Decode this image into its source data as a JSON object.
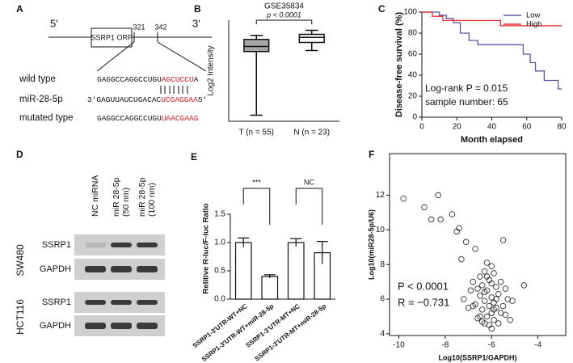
{
  "panel_labels": [
    "A",
    "B",
    "C",
    "D",
    "E",
    "F"
  ],
  "sequence_diagram": {
    "five_prime": "5′",
    "three_prime": "3′",
    "orf": "SSRP1 ORF",
    "positions": [
      "321",
      "342"
    ],
    "rows": [
      {
        "label": "wild type",
        "parts": [
          "GAGGCCAGGCCUGU",
          "AGCUCCU",
          "A"
        ]
      },
      {
        "label": "miR-28-5p",
        "parts": [
          "3′GAGUUAUCUGACAC",
          "UCGAGGAA",
          "5′"
        ]
      },
      {
        "label": "mutated type",
        "parts": [
          "GAGGCCAGGCCUGU",
          "UAACGAAG"
        ]
      }
    ]
  },
  "western_blot": {
    "lanes": [
      [
        "NC miRNA"
      ],
      [
        "miR 28-5p",
        "(50 nm)"
      ],
      [
        "miR 28-5p",
        "(100 nm)"
      ]
    ],
    "cell_lines": [
      {
        "name": "SW480",
        "proteins": [
          "SSRP1",
          "GAPDH"
        ]
      },
      {
        "name": "HCT116",
        "proteins": [
          "SSRP1",
          "GAPDH"
        ]
      }
    ]
  },
  "chart_data": [
    {
      "type": "box",
      "title": "GSE35834",
      "annotations": [
        "p < 0.0001"
      ],
      "ylabel": "Log2 Intensity",
      "categories": [
        "T (n = 55)",
        "N (n = 23)"
      ],
      "colors": [
        "#a6a6a6",
        "#ffffff"
      ],
      "min": [
        0.6,
        7.0
      ],
      "q1": [
        6.9,
        7.8
      ],
      "median": [
        7.4,
        8.3
      ],
      "q3": [
        8.1,
        8.6
      ],
      "max": [
        8.5,
        9.0
      ],
      "ylim": [
        0,
        10
      ]
    },
    {
      "type": "line",
      "ylabel": "Disease-free survival (%)",
      "xlabel": "Month elapsed",
      "xlim": [
        0,
        80
      ],
      "ylim": [
        0,
        100
      ],
      "xticks": [
        0,
        20,
        40,
        60,
        80
      ],
      "yticks": [
        0,
        20,
        40,
        60,
        80,
        100
      ],
      "legend": "upper right",
      "annotations": [
        "Log-rank P = 0.015",
        "sample number: 65"
      ],
      "series": [
        {
          "name": "Low",
          "color": "#5b55a0",
          "x": [
            0,
            10,
            10,
            14,
            14,
            18,
            18,
            22,
            22,
            27,
            27,
            32,
            32,
            58,
            58,
            62,
            62,
            65,
            65,
            70,
            70,
            78,
            78,
            80
          ],
          "values": [
            100,
            100,
            97,
            97,
            94,
            94,
            90,
            90,
            80,
            80,
            73,
            73,
            69,
            69,
            60,
            60,
            52,
            52,
            44,
            44,
            35,
            35,
            27,
            27
          ]
        },
        {
          "name": "High",
          "color": "#e8262b",
          "x": [
            0,
            6,
            6,
            12,
            12,
            45,
            45,
            80
          ],
          "values": [
            100,
            100,
            96,
            96,
            92,
            92,
            87,
            87
          ]
        }
      ]
    },
    {
      "type": "bar",
      "ylabel": "Relitive R-luc/F-luc Ratio",
      "categories": [
        "SSRP1-3′UTR-WT+NC",
        "SSRP1-3′UTR-WT+miR-28-5p",
        "SSRP1-3′UTR-MT+NC",
        "SSRP1-3′UTR-MT+miR-28-5p"
      ],
      "values": [
        1.0,
        0.4,
        1.0,
        0.82
      ],
      "errors": [
        0.08,
        0.03,
        0.07,
        0.2
      ],
      "color": "#ffffff",
      "ylim": [
        0,
        1.5
      ],
      "yticks": [
        {
          "value": 0,
          "label": "0.0"
        },
        {
          "value": 0.5,
          "label": "0.5"
        },
        {
          "value": 1,
          "label": "1.0"
        },
        {
          "value": 1.5,
          "label": "1.5"
        }
      ],
      "annotations": [
        "***",
        "NC"
      ]
    },
    {
      "type": "scatter",
      "xlabel": "Log10(SSRP1/GAPDH)",
      "ylabel": "Log10(miR28-5p/U6)",
      "xlim": [
        -10.4,
        -2.8
      ],
      "ylim": [
        3.9,
        14.4
      ],
      "xticks": [
        -10,
        -8,
        -6,
        -4
      ],
      "yticks": [
        4,
        6,
        8,
        10,
        12
      ],
      "annotations": [
        "P < 0.0001",
        "R = −0.731"
      ],
      "x": [
        -9.8,
        -8.3,
        -8.9,
        -7.7,
        -8.6,
        -8.2,
        -7.4,
        -7.1,
        -7.5,
        -6.7,
        -7.3,
        -5.5,
        -6.2,
        -6.0,
        -6.3,
        -5.9,
        -6.5,
        -6.1,
        -5.6,
        -6.4,
        -6.0,
        -5.8,
        -6.9,
        -6.2,
        -5.7,
        -5.3,
        -6.5,
        -6.0,
        -6.3,
        -5.9,
        -6.7,
        -6.1,
        -5.8,
        -6.4,
        -7.0,
        -5.6,
        -6.0,
        -6.2,
        -5.4,
        -6.5,
        -5.9,
        -6.3,
        -6.1,
        -5.7,
        -5.2,
        -6.8,
        -7.2,
        -6.6,
        -4.6,
        -5.1,
        -6.0,
        -6.4,
        -5.5,
        -6.8,
        -6.2,
        -5.8,
        -6.6,
        -5.9,
        -6.3,
        -5.4
      ],
      "values": [
        11.8,
        12.0,
        11.3,
        10.9,
        10.6,
        10.6,
        10.1,
        9.3,
        9.9,
        8.9,
        8.3,
        9.4,
        8.1,
        7.9,
        7.6,
        7.5,
        7.3,
        7.1,
        7.0,
        6.8,
        6.9,
        6.7,
        6.5,
        6.5,
        6.3,
        6.0,
        6.2,
        6.1,
        5.9,
        5.8,
        5.7,
        5.6,
        5.5,
        5.4,
        5.5,
        5.2,
        5.2,
        5.0,
        5.1,
        5.0,
        4.8,
        4.6,
        4.5,
        4.6,
        4.8,
        5.6,
        6.0,
        6.6,
        6.8,
        5.9,
        4.3,
        4.7,
        5.6,
        7.0,
        7.3,
        6.0,
        4.9,
        5.4,
        6.4,
        6.6
      ]
    }
  ]
}
